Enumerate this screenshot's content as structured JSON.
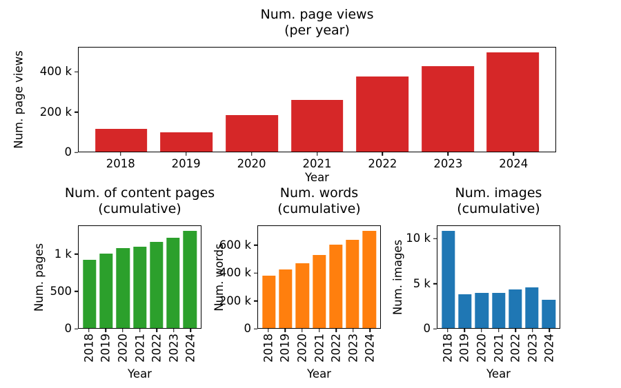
{
  "figure": {
    "background": "#ffffff",
    "text_color": "#000000"
  },
  "chart_data": [
    {
      "type": "bar",
      "title": "Num. page views\n(per year)",
      "xlabel": "Year",
      "ylabel": "Num. page views",
      "bar_color": "#d62728",
      "categories": [
        "2018",
        "2019",
        "2020",
        "2021",
        "2022",
        "2023",
        "2024"
      ],
      "values": [
        115000,
        98000,
        183000,
        262000,
        380000,
        431000,
        500000
      ],
      "ylim": [
        0,
        525000
      ],
      "yticks": [
        {
          "value": 0,
          "label": "0"
        },
        {
          "value": 200000,
          "label": "200 k"
        },
        {
          "value": 400000,
          "label": "400 k"
        }
      ],
      "xtick_rotation": 0,
      "grid": false,
      "legend": null
    },
    {
      "type": "bar",
      "title": "Num. of content pages\n(cumulative)",
      "xlabel": "Year",
      "ylabel": "Num. pages",
      "bar_color": "#2ca02c",
      "categories": [
        "2018",
        "2019",
        "2020",
        "2021",
        "2022",
        "2023",
        "2024"
      ],
      "values": [
        925,
        1010,
        1090,
        1105,
        1170,
        1225,
        1320
      ],
      "ylim": [
        0,
        1386
      ],
      "yticks": [
        {
          "value": 0,
          "label": "0"
        },
        {
          "value": 500,
          "label": "500"
        },
        {
          "value": 1000,
          "label": "1 k"
        }
      ],
      "xtick_rotation": 90,
      "grid": false,
      "legend": null
    },
    {
      "type": "bar",
      "title": "Num. words\n(cumulative)",
      "xlabel": "Year",
      "ylabel": "Num. words",
      "bar_color": "#ff7f0e",
      "categories": [
        "2018",
        "2019",
        "2020",
        "2021",
        "2022",
        "2023",
        "2024"
      ],
      "values": [
        380000,
        427000,
        470000,
        533000,
        607000,
        643000,
        707000
      ],
      "ylim": [
        0,
        742000
      ],
      "yticks": [
        {
          "value": 0,
          "label": "0"
        },
        {
          "value": 200000,
          "label": "200 k"
        },
        {
          "value": 400000,
          "label": "400 k"
        },
        {
          "value": 600000,
          "label": "600 k"
        }
      ],
      "xtick_rotation": 90,
      "grid": false,
      "legend": null
    },
    {
      "type": "bar",
      "title": "Num. images\n(cumulative)",
      "xlabel": "Year",
      "ylabel": "Num. images",
      "bar_color": "#1f77b4",
      "categories": [
        "2018",
        "2019",
        "2020",
        "2021",
        "2022",
        "2023",
        "2024"
      ],
      "values": [
        10900,
        3800,
        3950,
        3950,
        4300,
        4550,
        3200
      ],
      "ylim": [
        0,
        11450
      ],
      "yticks": [
        {
          "value": 0,
          "label": "0"
        },
        {
          "value": 5000,
          "label": "5 k"
        },
        {
          "value": 10000,
          "label": "10 k"
        }
      ],
      "xtick_rotation": 90,
      "grid": false,
      "legend": null
    }
  ]
}
